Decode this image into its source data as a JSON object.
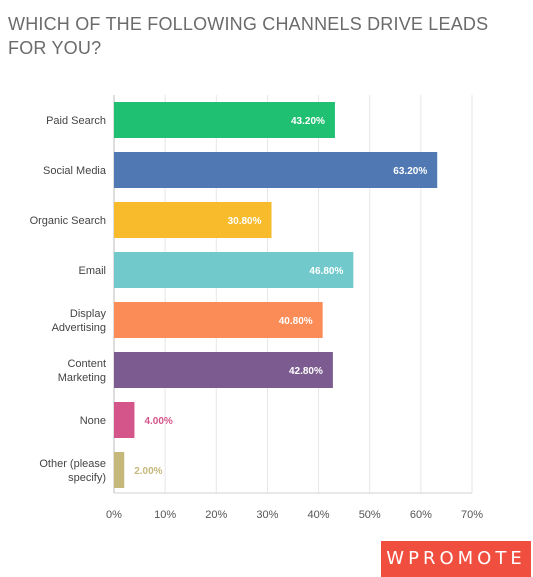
{
  "chart_data": {
    "type": "bar",
    "orientation": "horizontal",
    "title": "WHICH OF THE FOLLOWING CHANNELS DRIVE LEADS FOR YOU?",
    "categories": [
      [
        "Paid Search"
      ],
      [
        "Social Media"
      ],
      [
        "Organic Search"
      ],
      [
        "Email"
      ],
      [
        "Display",
        "Advertising"
      ],
      [
        "Content",
        "Marketing"
      ],
      [
        "None"
      ],
      [
        "Other (please",
        "specify)"
      ]
    ],
    "values": [
      43.2,
      63.2,
      30.8,
      46.8,
      40.8,
      42.8,
      4.0,
      2.0
    ],
    "value_labels": [
      "43.20%",
      "63.20%",
      "30.80%",
      "46.80%",
      "40.80%",
      "42.80%",
      "4.00%",
      "2.00%"
    ],
    "colors": [
      "#20c073",
      "#5079b4",
      "#f7bb2c",
      "#71c9cb",
      "#fb8c57",
      "#7c5c90",
      "#d4558a",
      "#c6b87b"
    ],
    "xlim": [
      0,
      70
    ],
    "xticks": [
      0,
      10,
      20,
      30,
      40,
      50,
      60,
      70
    ],
    "xtick_labels": [
      "0%",
      "10%",
      "20%",
      "30%",
      "40%",
      "50%",
      "60%",
      "70%"
    ],
    "grid": true,
    "legend": "none"
  },
  "branding": {
    "logo_text": "WPROMOTE",
    "logo_color": "#f04e3e"
  }
}
